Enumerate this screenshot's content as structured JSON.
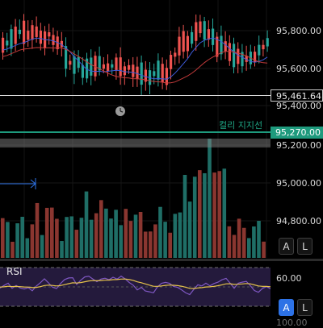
{
  "price_axis": {
    "ticks": [
      "95,800.00",
      "95,600.00",
      "95,400.00",
      "95,200.00",
      "95,000.00",
      "94,800.00"
    ],
    "current_price": "95,461.64",
    "support_price": "95,270.00"
  },
  "annotations": {
    "support_label": "컬리 지지선"
  },
  "scale_buttons": {
    "main_auto": "A",
    "main_log": "L",
    "rsi_auto": "A",
    "rsi_log": "L"
  },
  "rsi": {
    "title": "RSI",
    "level_label": "60.00",
    "cut_label": "100.00"
  },
  "colors": {
    "up": "#26a69a",
    "down": "#ef5350",
    "volume_up": "#1f6e66",
    "volume_down": "#8a3630",
    "support": "#1e9a7d",
    "rsi_line": "#7e57c2",
    "rsi_ma": "#e6c34a",
    "ma_line": "#3d5ad8",
    "ma2_line": "#c23a3a"
  }
}
